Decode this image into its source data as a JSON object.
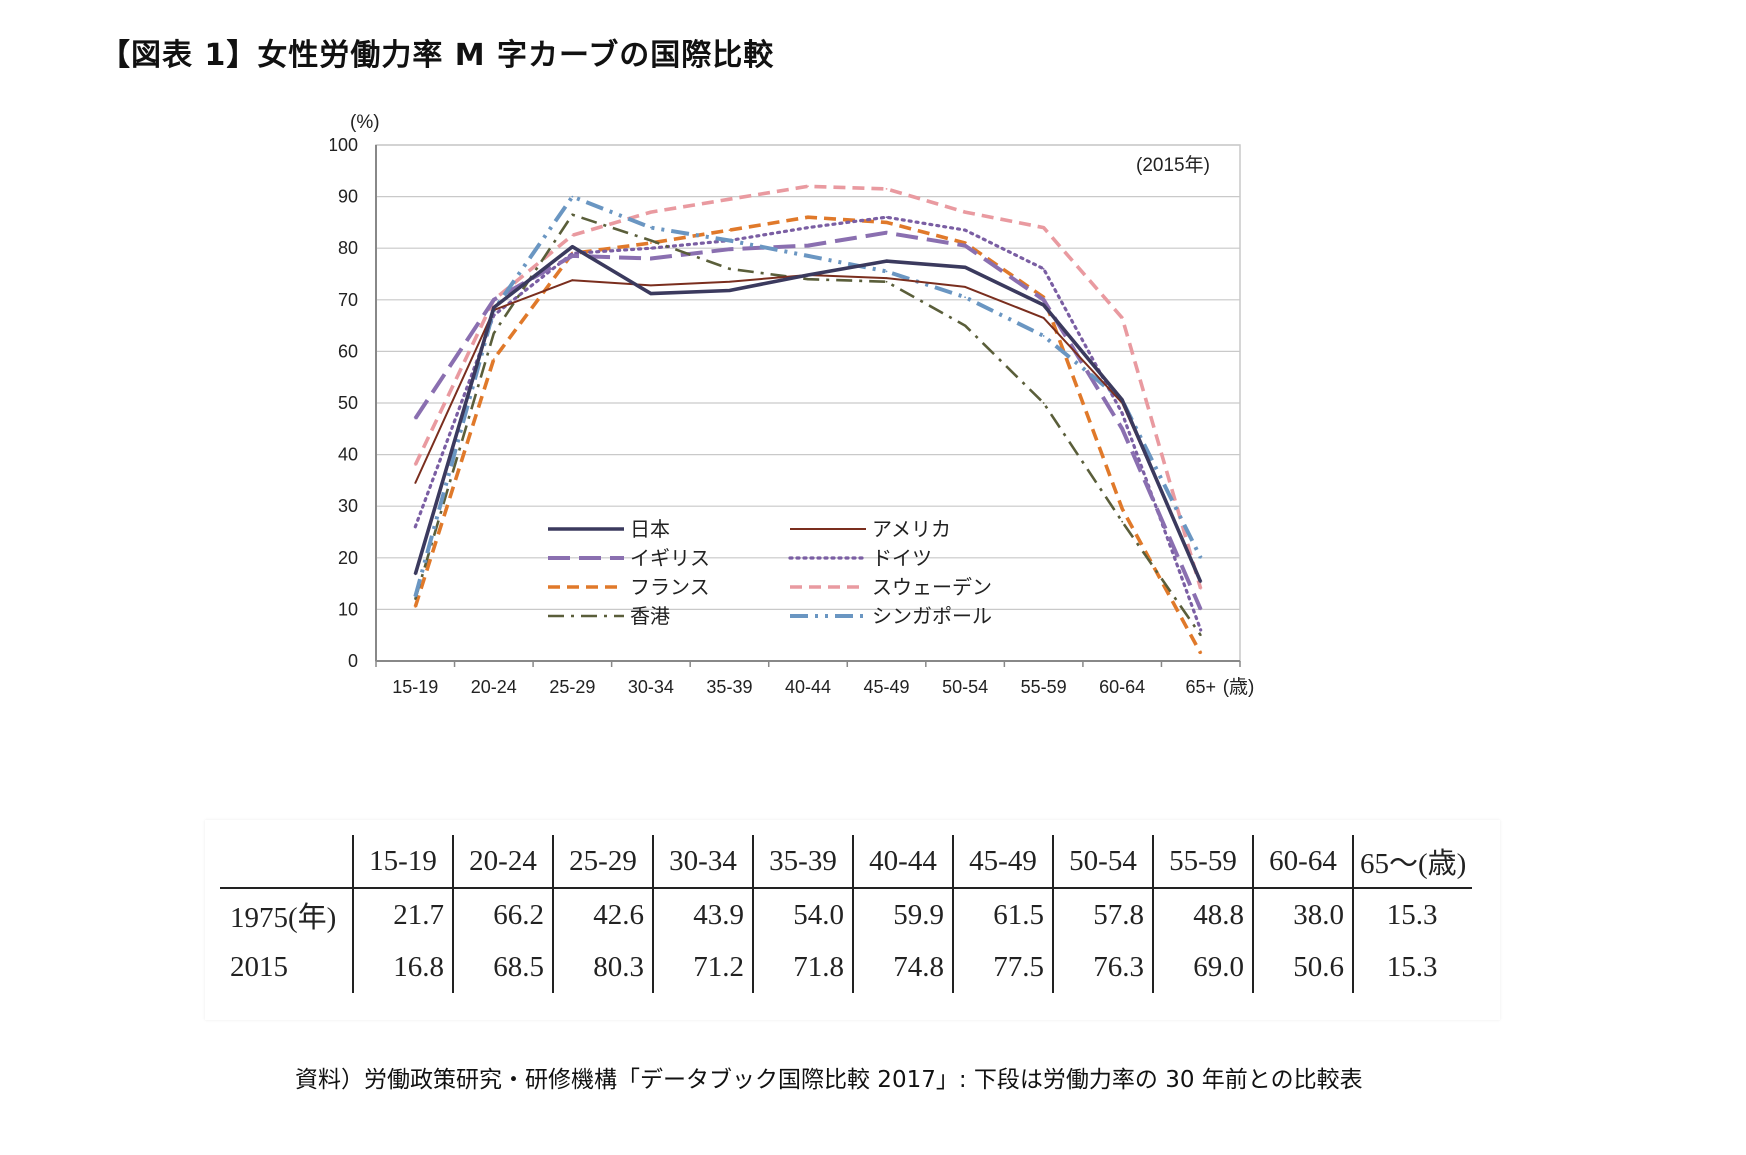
{
  "title": "【図表 1】女性労働力率 M 字カーブの国際比較",
  "chart_data": {
    "type": "line",
    "ylabel": "(%)",
    "xunit": "(歳)",
    "annotation": "(2015年)",
    "ylim": [
      0,
      100
    ],
    "yticks": [
      "0",
      "10",
      "20",
      "30",
      "40",
      "50",
      "60",
      "70",
      "80",
      "90",
      "100"
    ],
    "categories": [
      "15-19",
      "20-24",
      "25-29",
      "30-34",
      "35-39",
      "40-44",
      "45-49",
      "50-54",
      "55-59",
      "60-64",
      "65+"
    ],
    "grid": true,
    "legend_placement": "bottom-center",
    "series": [
      {
        "name": "日本",
        "color": "#3b3a5e",
        "style": "solid-thick",
        "values": [
          16.8,
          68.5,
          80.3,
          71.2,
          71.8,
          74.8,
          77.5,
          76.3,
          69.0,
          50.6,
          15.3
        ]
      },
      {
        "name": "アメリカ",
        "color": "#7a2e1e",
        "style": "solid-thin",
        "values": [
          34.5,
          68.0,
          73.8,
          72.8,
          73.5,
          74.8,
          74.2,
          72.5,
          66.5,
          50.0,
          15.5
        ]
      },
      {
        "name": "イギリス",
        "color": "#8a6fb0",
        "style": "longdash",
        "values": [
          47.0,
          70.0,
          78.5,
          78.0,
          79.8,
          80.5,
          83.0,
          80.5,
          70.0,
          45.0,
          10.0
        ]
      },
      {
        "name": "ドイツ",
        "color": "#7a5ea3",
        "style": "dotted",
        "values": [
          26.0,
          67.0,
          79.0,
          80.0,
          81.5,
          84.0,
          86.0,
          83.5,
          76.0,
          48.0,
          6.0
        ]
      },
      {
        "name": "フランス",
        "color": "#e0792a",
        "style": "dashed",
        "values": [
          10.5,
          58.5,
          79.0,
          81.0,
          83.5,
          86.0,
          85.0,
          81.0,
          70.5,
          29.5,
          1.5
        ]
      },
      {
        "name": "スウェーデン",
        "color": "#e99aa0",
        "style": "dashed",
        "values": [
          38.0,
          70.0,
          82.5,
          87.0,
          89.5,
          92.0,
          91.5,
          87.0,
          84.0,
          66.5,
          14.0
        ]
      },
      {
        "name": "香港",
        "color": "#5a5e3a",
        "style": "dashdot",
        "values": [
          12.0,
          63.5,
          86.5,
          81.5,
          76.0,
          74.0,
          73.5,
          65.0,
          50.0,
          27.0,
          5.0
        ]
      },
      {
        "name": "シンガポール",
        "color": "#6a96c2",
        "style": "dashdotdot",
        "values": [
          12.5,
          68.0,
          90.0,
          84.0,
          81.5,
          78.5,
          75.5,
          70.5,
          63.0,
          50.5,
          20.0
        ]
      }
    ]
  },
  "table": {
    "headers": [
      "",
      "15-19",
      "20-24",
      "25-29",
      "30-34",
      "35-39",
      "40-44",
      "45-49",
      "50-54",
      "55-59",
      "60-64",
      "65〜(歳)"
    ],
    "rows": [
      {
        "label": "1975(年)",
        "values": [
          "21.7",
          "66.2",
          "42.6",
          "43.9",
          "54.0",
          "59.9",
          "61.5",
          "57.8",
          "48.8",
          "38.0",
          "15.3"
        ]
      },
      {
        "label": "2015",
        "values": [
          "16.8",
          "68.5",
          "80.3",
          "71.2",
          "71.8",
          "74.8",
          "77.5",
          "76.3",
          "69.0",
          "50.6",
          "15.3"
        ]
      }
    ]
  },
  "source": "資料）労働政策研究・研修機構「データブック国際比較 2017」: 下段は労働力率の 30 年前との比較表"
}
